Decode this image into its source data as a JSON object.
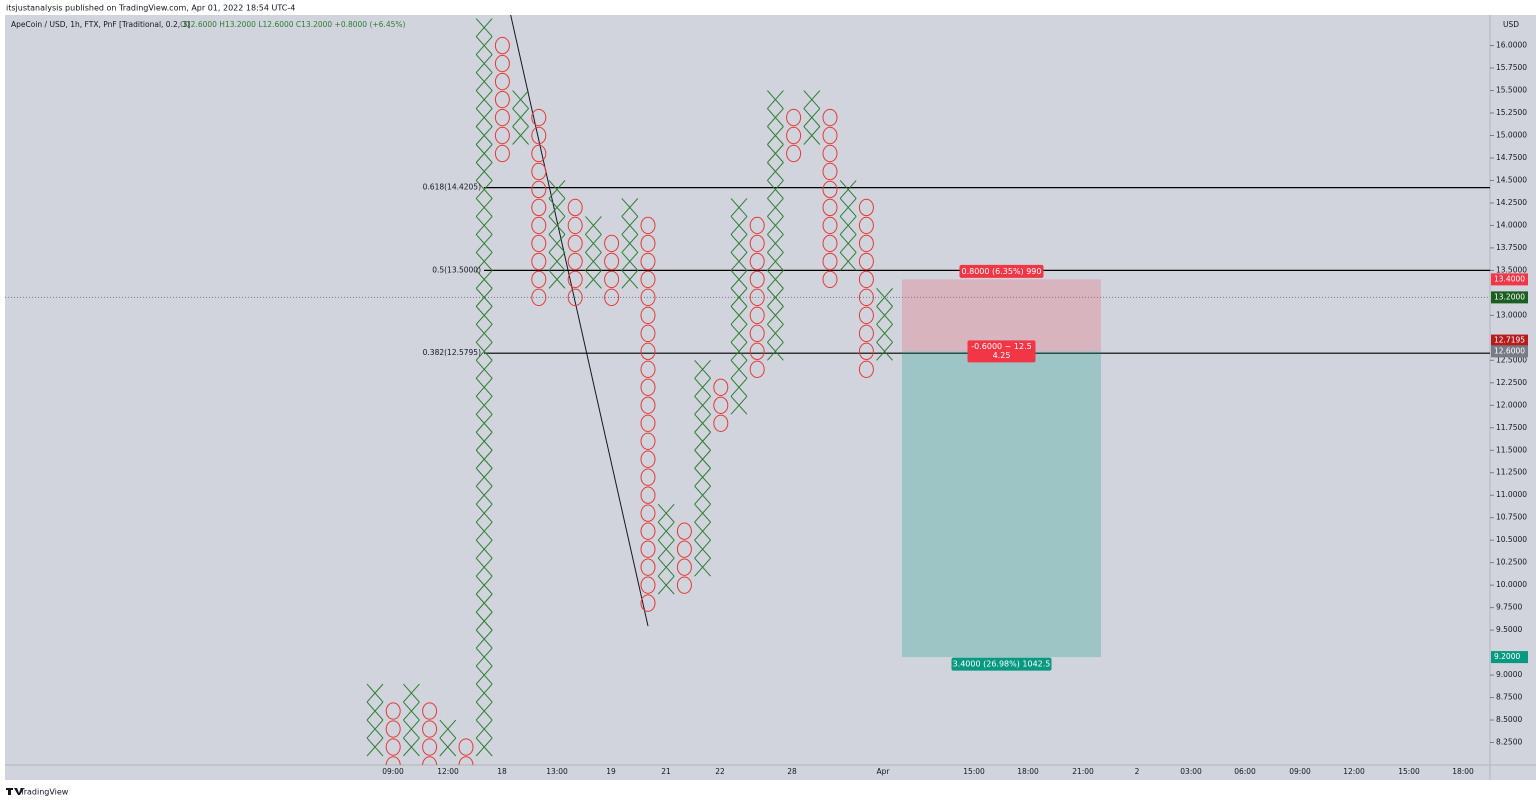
{
  "header": "itsjustanalysis published on TradingView.com, Apr 01, 2022 18:54 UTC-4",
  "footer": "TradingView",
  "chart_data": {
    "type": "pnf",
    "title": "ApeCoin / USD, 1h, FTX, PnF [Traditional, 0.2, 3]",
    "ohlc": "O12.6000  H13.2000  L12.6000  C13.2000  +0.8000 (+6.45%)",
    "currency": "USD",
    "box_size": 0.2,
    "columns": [
      {
        "box": "X",
        "low": 8.2,
        "high": 8.8
      },
      {
        "box": "O",
        "low": 8.0,
        "high": 8.6
      },
      {
        "box": "X",
        "low": 8.2,
        "high": 8.8
      },
      {
        "box": "O",
        "low": 8.0,
        "high": 8.6
      },
      {
        "box": "X",
        "low": 8.2,
        "high": 8.4
      },
      {
        "box": "O",
        "low": 8.0,
        "high": 8.2
      },
      {
        "box": "X",
        "low": 8.2,
        "high": 16.2
      },
      {
        "box": "O",
        "low": 14.8,
        "high": 16.0
      },
      {
        "box": "X",
        "low": 15.0,
        "high": 15.4
      },
      {
        "box": "O",
        "low": 13.2,
        "high": 15.2
      },
      {
        "box": "X",
        "low": 13.4,
        "high": 14.4
      },
      {
        "box": "O",
        "low": 13.2,
        "high": 14.2
      },
      {
        "box": "X",
        "low": 13.4,
        "high": 14.0
      },
      {
        "box": "O",
        "low": 13.2,
        "high": 13.8
      },
      {
        "box": "X",
        "low": 13.4,
        "high": 14.2
      },
      {
        "box": "O",
        "low": 9.8,
        "high": 14.0
      },
      {
        "box": "X",
        "low": 10.0,
        "high": 10.8
      },
      {
        "box": "O",
        "low": 10.0,
        "high": 10.6
      },
      {
        "box": "X",
        "low": 10.2,
        "high": 12.4
      },
      {
        "box": "O",
        "low": 11.8,
        "high": 12.2
      },
      {
        "box": "X",
        "low": 12.0,
        "high": 14.2
      },
      {
        "box": "O",
        "low": 12.4,
        "high": 14.0
      },
      {
        "box": "X",
        "low": 12.6,
        "high": 15.4
      },
      {
        "box": "O",
        "low": 14.8,
        "high": 15.2
      },
      {
        "box": "X",
        "low": 15.0,
        "high": 15.4
      },
      {
        "box": "O",
        "low": 13.4,
        "high": 15.2
      },
      {
        "box": "X",
        "low": 13.6,
        "high": 14.4
      },
      {
        "box": "O",
        "low": 12.4,
        "high": 14.2
      },
      {
        "box": "X",
        "low": 12.6,
        "high": 13.2
      }
    ],
    "x_color": "#2e7d32",
    "o_color": "#e53935",
    "fib": [
      {
        "value": 14.4205,
        "label": "0.618(14.4205)"
      },
      {
        "value": 13.5,
        "label": "0.5(13.5000)"
      },
      {
        "value": 12.5795,
        "label": "0.382(12.5795)"
      }
    ],
    "last_price": 13.2,
    "position": {
      "stop": 13.4,
      "entry": 12.6,
      "target": 9.2,
      "stop_label": "0.8000 (6.35%) 990",
      "entry_label_1": "-0.6000 ~ 12.5",
      "entry_label_2": "4.25",
      "target_label": "3.4000 (26.98%) 1042.5"
    },
    "price_badges": [
      {
        "value": 13.4,
        "label": "13.4000",
        "color": "#f23645"
      },
      {
        "value": 13.2,
        "label": "13.2000",
        "color": "#1b5e20"
      },
      {
        "value": 12.7195,
        "label": "12.7195",
        "color": "#b71c1c"
      },
      {
        "value": 12.6,
        "label": "12.6000",
        "color": "#787b86"
      },
      {
        "value": 9.2,
        "label": "9.2000",
        "color": "#089981"
      }
    ],
    "ylim": [
      8.0,
      16.34
    ],
    "yticks": [
      {
        "value": 16,
        "label": "16.0000"
      },
      {
        "value": 15.75,
        "label": "15.7500"
      },
      {
        "value": 15.5,
        "label": "15.5000"
      },
      {
        "value": 15.25,
        "label": "15.2500"
      },
      {
        "value": 15,
        "label": "15.0000"
      },
      {
        "value": 14.75,
        "label": "14.7500"
      },
      {
        "value": 14.5,
        "label": "14.5000"
      },
      {
        "value": 14.25,
        "label": "14.2500"
      },
      {
        "value": 14,
        "label": "14.0000"
      },
      {
        "value": 13.75,
        "label": "13.7500"
      },
      {
        "value": 13.5,
        "label": "13.5000"
      },
      {
        "value": 13,
        "label": "13.0000"
      },
      {
        "value": 12.5,
        "label": "12.5000"
      },
      {
        "value": 12.25,
        "label": "12.2500"
      },
      {
        "value": 12,
        "label": "12.0000"
      },
      {
        "value": 11.75,
        "label": "11.7500"
      },
      {
        "value": 11.5,
        "label": "11.5000"
      },
      {
        "value": 11.25,
        "label": "11.2500"
      },
      {
        "value": 11,
        "label": "11.0000"
      },
      {
        "value": 10.75,
        "label": "10.7500"
      },
      {
        "value": 10.5,
        "label": "10.5000"
      },
      {
        "value": 10.25,
        "label": "10.2500"
      },
      {
        "value": 10,
        "label": "10.0000"
      },
      {
        "value": 9.75,
        "label": "9.7500"
      },
      {
        "value": 9.5,
        "label": "9.5000"
      },
      {
        "value": 9,
        "label": "9.0000"
      },
      {
        "value": 8.75,
        "label": "8.7500"
      },
      {
        "value": 8.5,
        "label": "8.5000"
      },
      {
        "value": 8.25,
        "label": "8.2500"
      }
    ],
    "x_labels": [
      "09:00",
      "12:00",
      "18",
      "13:00",
      "19",
      "21",
      "22",
      "28",
      "Apr",
      "15:00",
      "18:00",
      "21:00",
      "2",
      "03:00",
      "06:00",
      "09:00",
      "12:00",
      "15:00",
      "18:00"
    ]
  }
}
